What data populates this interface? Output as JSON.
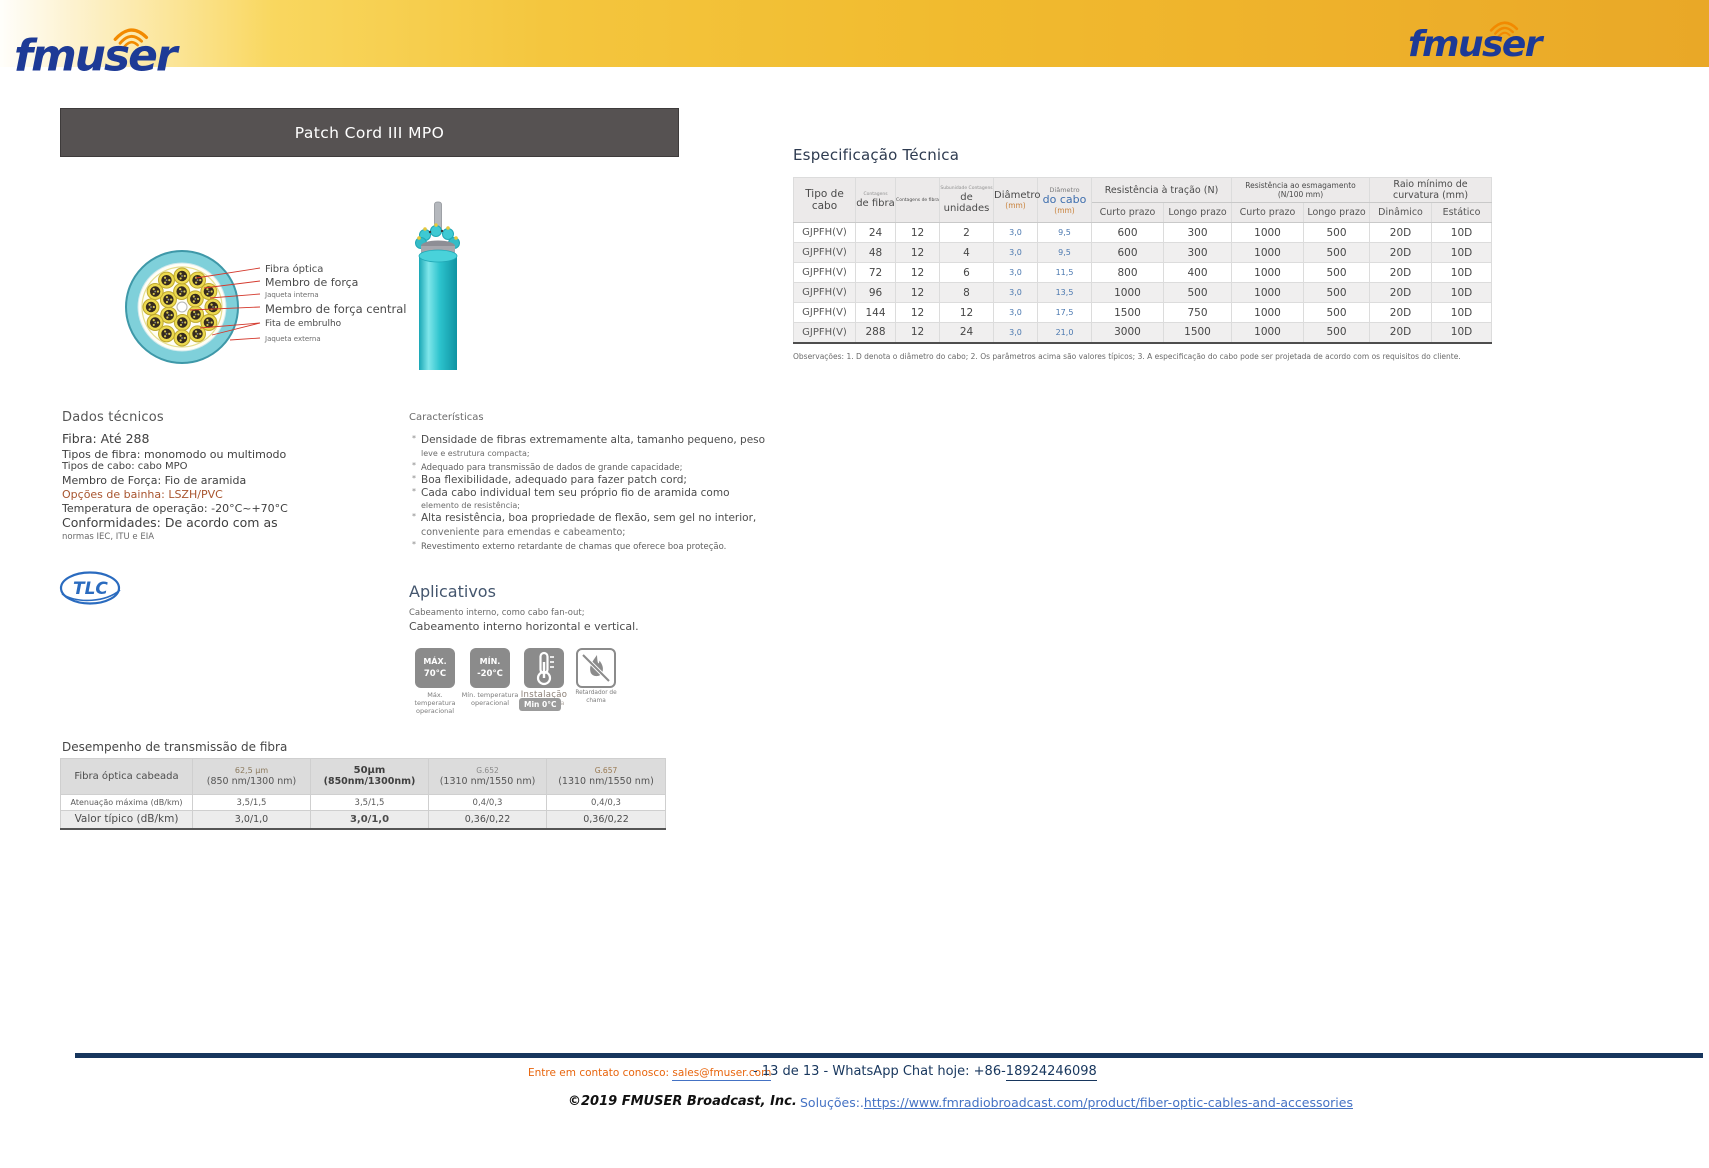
{
  "brand": {
    "logo_text": "fmuser"
  },
  "title_bar": {
    "title": "Patch Cord III MPO"
  },
  "diagram": {
    "labels": [
      "Fibra óptica",
      "Membro de força",
      "Jaqueta interna",
      "Membro de força central",
      "Fita de embrulho",
      "Jaqueta externa"
    ]
  },
  "dados": {
    "heading": "Dados técnicos",
    "lines": [
      "Fibra: Até 288",
      "Tipos de fibra: monomodo ou multimodo",
      "Tipos de cabo: cabo MPO",
      "Membro de Força: Fio de aramida",
      "Opções de bainha: LSZH/PVC",
      "Temperatura de operação: -20°C~+70°C",
      "Conformidades: De acordo com as",
      "normas IEC, ITU e EIA"
    ]
  },
  "carac": {
    "heading": "Características",
    "items": [
      {
        "main": "Densidade de fibras extremamente alta, tamanho pequeno, peso",
        "sub": "leve e estrutura compacta;"
      },
      {
        "main": "Adequado para transmissão de dados de grande capacidade;",
        "sub": ""
      },
      {
        "main": "Boa flexibilidade, adequado para fazer patch cord;",
        "sub": ""
      },
      {
        "main": "Cada cabo individual tem seu próprio fio de aramida como",
        "sub": "elemento de resistência;"
      },
      {
        "main": "Alta resistência, boa propriedade de flexão, sem gel no interior,",
        "sub": "conveniente para emendas e cabeamento;"
      },
      {
        "main": "Revestimento externo retardante de chamas que oferece boa proteção.",
        "sub": ""
      }
    ]
  },
  "aplic": {
    "heading": "Aplicativos",
    "line1": "Cabeamento interno, como cabo fan-out;",
    "line2": "Cabeamento interno horizontal e vertical.",
    "icons": [
      {
        "label1": "MÁX.",
        "label2": "70°C",
        "cap1": "Máx. temperatura",
        "cap2": "operacional"
      },
      {
        "label1": "MÍN.",
        "label2": "-20°C",
        "cap1": "Mín. temperatura",
        "cap2": "operacional"
      },
      {
        "cap1": "Instalação",
        "cap2": "temperatura",
        "badge": "Min 0°C"
      },
      {
        "cap1": "Retardador de chama"
      }
    ]
  },
  "spec": {
    "heading": "Especificação Técnica",
    "header": {
      "tipo": "Tipo de cabo",
      "fibra_top": "Contagens",
      "fibra_main": "de fibra",
      "cont_fibra": "Contagens de fibra",
      "unid_top": "Subunidade Contagens",
      "unid_main": "de unidades",
      "diam_main": "Diâmetro",
      "diam_unit": "(mm)",
      "docabo_top": "Diâmetro",
      "docabo_main": "do cabo",
      "docabo_unit": "(mm)",
      "g_tracao": "Resistência à tração (N)",
      "g_esmag": "Resistência ao esmagamento (N/100 mm)",
      "g_raio": "Raio mínimo de curvatura (mm)",
      "curto": "Curto prazo",
      "longo": "Longo prazo",
      "dinamico": "Dinâmico",
      "estatico": "Estático"
    },
    "rows": [
      [
        "GJPFH(V)",
        "24",
        "12",
        "2",
        "3,0",
        "9,5",
        "600",
        "300",
        "1000",
        "500",
        "20D",
        "10D"
      ],
      [
        "GJPFH(V)",
        "48",
        "12",
        "4",
        "3,0",
        "9,5",
        "600",
        "300",
        "1000",
        "500",
        "20D",
        "10D"
      ],
      [
        "GJPFH(V)",
        "72",
        "12",
        "6",
        "3,0",
        "11,5",
        "800",
        "400",
        "1000",
        "500",
        "20D",
        "10D"
      ],
      [
        "GJPFH(V)",
        "96",
        "12",
        "8",
        "3,0",
        "13,5",
        "1000",
        "500",
        "1000",
        "500",
        "20D",
        "10D"
      ],
      [
        "GJPFH(V)",
        "144",
        "12",
        "12",
        "3,0",
        "17,5",
        "1500",
        "750",
        "1000",
        "500",
        "20D",
        "10D"
      ],
      [
        "GJPFH(V)",
        "288",
        "12",
        "24",
        "3,0",
        "21,0",
        "3000",
        "1500",
        "1000",
        "500",
        "20D",
        "10D"
      ]
    ],
    "note": "Observações: 1. D denota o diâmetro do cabo; 2. Os parâmetros acima são valores típicos; 3. A especificação do cabo pode ser projetada de acordo com os requisitos do cliente."
  },
  "perf": {
    "heading": "Desempenho de transmissão de fibra",
    "col0": "Fibra óptica cabeada",
    "headers": [
      {
        "top": "62,5 μm",
        "bottom": "(850 nm/1300 nm)"
      },
      {
        "top": "50μm",
        "bottom": "(850nm/1300nm)"
      },
      {
        "top": "G.652",
        "bottom": "(1310 nm/1550 nm)"
      },
      {
        "top": "G.657",
        "bottom": "(1310 nm/1550 nm)"
      }
    ],
    "rows": [
      [
        "Atenuação máxima (dB/km)",
        "3,5/1,5",
        "3,5/1,5",
        "0,4/0,3",
        "0,4/0,3"
      ],
      [
        "Valor típico (dB/km)",
        "3,0/1,0",
        "3,0/1,0",
        "0,36/0,22",
        "0,36/0,22"
      ]
    ]
  },
  "tlc": {
    "text": "TLC"
  },
  "footer": {
    "contact_label": "Entre em contato conosco: ",
    "contact_email": "sales@fmuser.com",
    "page_info": "- 13 de 13 - WhatsApp Chat hoje: +86-",
    "phone": "18924246098",
    "copyright": "©2019 FMUSER Broadcast, Inc.",
    "solutions_label": "Soluções:.",
    "solutions_url": "https://www.fmradiobroadcast.com/product/fiber-optic-cables-and-accessories"
  },
  "colors": {
    "accent_gold": "#f3bd37",
    "brand_blue": "#1d3a96",
    "brand_orange": "#f28a00",
    "navy": "#17365d",
    "link_blue": "#4472c4",
    "contact_orange": "#e8650d",
    "cable_teal": "#3ec9d3"
  }
}
